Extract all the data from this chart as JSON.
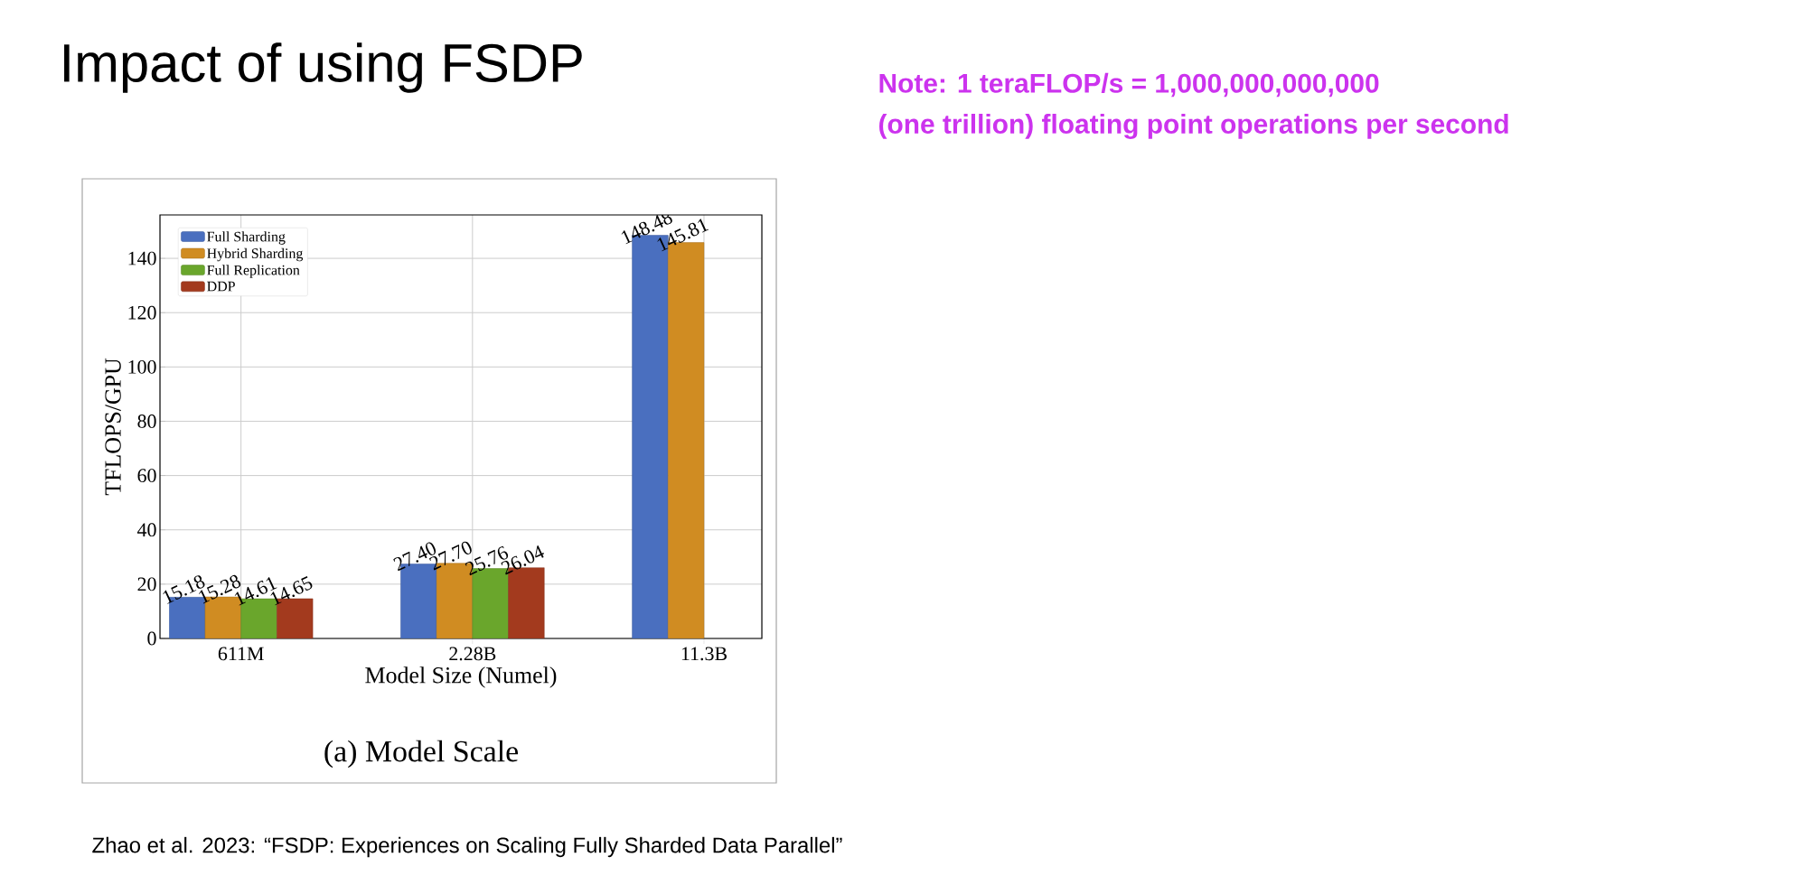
{
  "chart_data": {
    "type": "bar",
    "title": "Impact of using FSDP",
    "xlabel": "Model Size (Numel)",
    "ylabel": "TFLOPS/GPU",
    "categories": [
      "611M",
      "2.28B",
      "11.3B"
    ],
    "series": [
      {
        "name": "Full Sharding",
        "color": "#4a6fbf",
        "values": [
          15.18,
          27.4,
          148.48
        ],
        "value_labels": [
          "15.18",
          "27.40",
          "148.48"
        ]
      },
      {
        "name": "Hybrid Sharding",
        "color": "#d08c22",
        "values": [
          15.28,
          27.7,
          145.81
        ],
        "value_labels": [
          "15.28",
          "27.70",
          "145.81"
        ]
      },
      {
        "name": "Full Replication",
        "color": "#6aa62c",
        "values": [
          14.61,
          25.76,
          null
        ],
        "value_labels": [
          "14.61",
          "25.76",
          null
        ]
      },
      {
        "name": "DDP",
        "color": "#a33a1e",
        "values": [
          14.65,
          26.04,
          null
        ],
        "value_labels": [
          "14.65",
          "26.04",
          null
        ]
      }
    ],
    "ylim": [
      0,
      156
    ],
    "yticks": [
      0,
      20,
      40,
      60,
      80,
      100,
      120,
      140
    ],
    "grid": true,
    "legend": "top left",
    "annotations": [
      "Note: 1 teraFLOP/s = 1,000,000,000,000",
      "(one trillion) floating point operations per second",
      "(a) Model Scale",
      "Zhao et al. 2023: “FSDP: Experiences on Scaling Fully Sharded Data Parallel”"
    ]
  }
}
